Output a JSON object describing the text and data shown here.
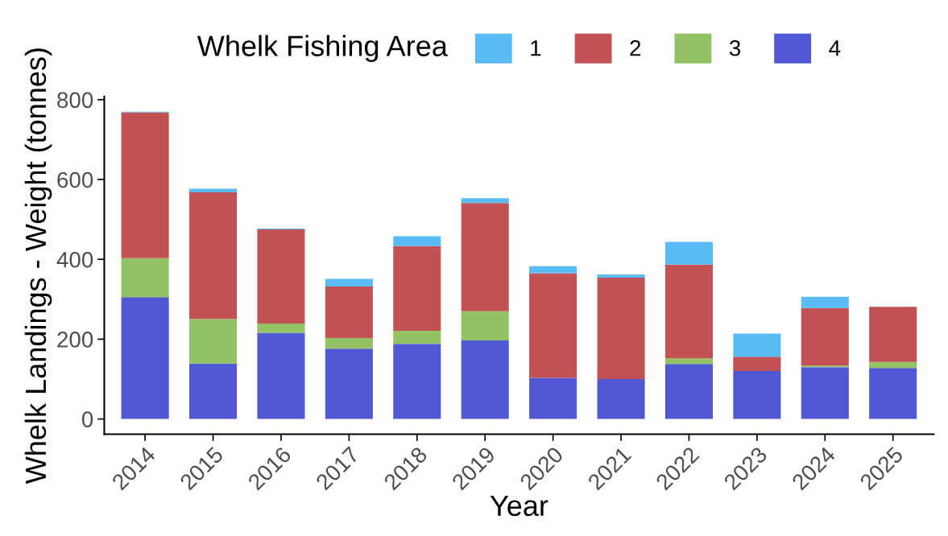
{
  "chart_data": {
    "type": "bar",
    "stacked": true,
    "xlabel": "Year",
    "ylabel": "Whelk Landings - Weight (tonnes)",
    "legend_title": "Whelk Fishing Area",
    "categories": [
      "2014",
      "2015",
      "2016",
      "2017",
      "2018",
      "2019",
      "2020",
      "2021",
      "2022",
      "2023",
      "2024",
      "2025"
    ],
    "series": [
      {
        "name": "4",
        "color": "#5058d3",
        "values": [
          305,
          139,
          216,
          176,
          188,
          197,
          103,
          100,
          138,
          120,
          130,
          128
        ]
      },
      {
        "name": "3",
        "color": "#92c264",
        "values": [
          98,
          112,
          23,
          27,
          33,
          73,
          0,
          0,
          14,
          0,
          4,
          15
        ]
      },
      {
        "name": "2",
        "color": "#c25256",
        "values": [
          365,
          317,
          236,
          129,
          212,
          271,
          262,
          254,
          235,
          36,
          144,
          138
        ]
      },
      {
        "name": "1",
        "color": "#5bbcf5",
        "values": [
          2,
          9,
          2,
          19,
          25,
          12,
          18,
          8,
          57,
          58,
          28,
          0
        ]
      }
    ],
    "ylim": [
      -38,
      808
    ],
    "yticks": [
      0,
      200,
      400,
      600,
      800
    ],
    "grid": false,
    "legend": "top"
  }
}
